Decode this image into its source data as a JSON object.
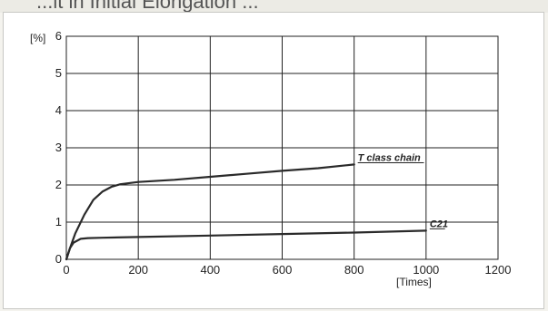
{
  "header_fragment": "...lt in Initial Elongation ...",
  "chart_data": {
    "type": "line",
    "y_unit_label": "[%]",
    "x_unit_label": "[Times]",
    "xlim": [
      0,
      1200
    ],
    "ylim": [
      0,
      6
    ],
    "x_ticks": [
      "0",
      "200",
      "400",
      "600",
      "800",
      "1000",
      "1200"
    ],
    "y_ticks": [
      "0",
      "1",
      "2",
      "3",
      "4",
      "5",
      "6"
    ],
    "grid": true,
    "series": [
      {
        "name": "T class chain",
        "x": [
          0,
          10,
          25,
          50,
          75,
          100,
          125,
          150,
          200,
          300,
          400,
          500,
          600,
          700,
          800
        ],
        "y": [
          0,
          0.3,
          0.7,
          1.2,
          1.6,
          1.82,
          1.95,
          2.02,
          2.08,
          2.14,
          2.22,
          2.3,
          2.38,
          2.45,
          2.55
        ]
      },
      {
        "name": "C21",
        "x": [
          0,
          10,
          20,
          40,
          60,
          100,
          200,
          400,
          600,
          800,
          1000
        ],
        "y": [
          0,
          0.3,
          0.45,
          0.55,
          0.57,
          0.58,
          0.6,
          0.64,
          0.68,
          0.72,
          0.77
        ]
      }
    ]
  }
}
